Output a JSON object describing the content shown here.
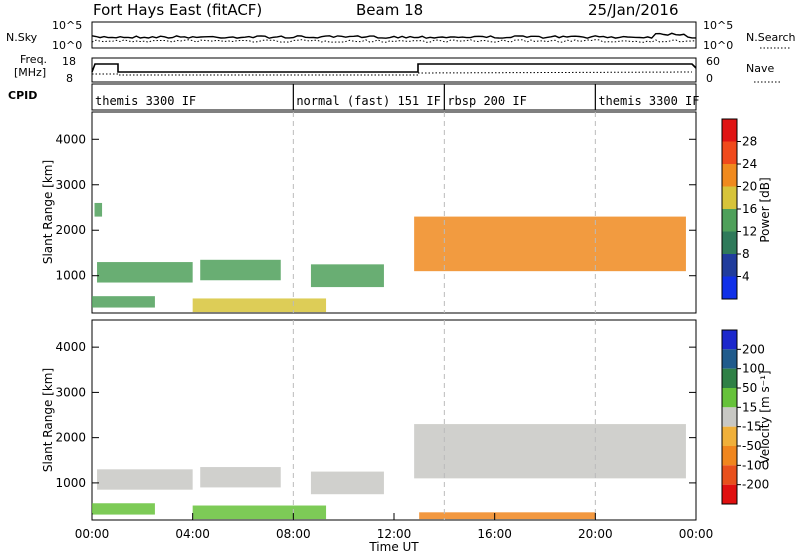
{
  "header": {
    "left_title": "Fort Hays East (fitACF)",
    "center_title": "Beam 18",
    "right_title": "25/Jan/2016"
  },
  "noise_panel": {
    "left_label": "N.Sky",
    "left_ticks": [
      "10^5",
      "10^0"
    ],
    "right_label": "N.Search",
    "right_ticks": [
      "10^5",
      "10^0"
    ]
  },
  "freq_panel": {
    "left_label_line1": "Freq.",
    "left_label_line2": "[MHz]",
    "left_ticks": [
      "18",
      "8"
    ],
    "right_label": "Nave",
    "right_ticks": [
      "60",
      "0"
    ]
  },
  "cpid_panel": {
    "label": "CPID",
    "segments": [
      {
        "start_hour": 0,
        "text": "themis 3300 IF"
      },
      {
        "start_hour": 8,
        "text": "normal (fast) 151 IF"
      },
      {
        "start_hour": 14,
        "text": "rbsp 200 IF"
      },
      {
        "start_hour": 20,
        "text": "themis 3300 IF"
      }
    ]
  },
  "chart_data": [
    {
      "type": "heatmap",
      "xlabel": "",
      "ylabel": "Slant Range [km]",
      "xlim": [
        0,
        24
      ],
      "ylim": [
        180,
        4600
      ],
      "yticks": [
        1000,
        2000,
        3000,
        4000
      ],
      "colorbar": {
        "label": "Power [dB]",
        "range": [
          0,
          32
        ],
        "ticks": [
          "4",
          "8",
          "12",
          "16",
          "20",
          "24",
          "28"
        ],
        "colors": [
          "#1030e8",
          "#203c9c",
          "#2f7a5a",
          "#4fa05a",
          "#d7c43a",
          "#f08a1e",
          "#f04a1c",
          "#e01414"
        ]
      },
      "regions": [
        {
          "t": [
            0.2,
            4.0
          ],
          "range": [
            850,
            1300
          ],
          "value": 12
        },
        {
          "t": [
            4.3,
            7.5
          ],
          "range": [
            900,
            1350
          ],
          "value": 12
        },
        {
          "t": [
            8.7,
            11.6
          ],
          "range": [
            750,
            1250
          ],
          "value": 14
        },
        {
          "t": [
            0.0,
            2.5
          ],
          "range": [
            300,
            550
          ],
          "value": 14
        },
        {
          "t": [
            4.0,
            9.3
          ],
          "range": [
            200,
            500
          ],
          "value": 18
        },
        {
          "t": [
            12.8,
            23.6
          ],
          "range": [
            1100,
            2300
          ],
          "value": 22
        },
        {
          "t": [
            0.1,
            0.4
          ],
          "range": [
            2300,
            2600
          ],
          "value": 14
        }
      ]
    },
    {
      "type": "heatmap",
      "xlabel": "Time UT",
      "ylabel": "Slant Range [km]",
      "xlim": [
        0,
        24
      ],
      "ylim": [
        180,
        4600
      ],
      "yticks": [
        1000,
        2000,
        3000,
        4000
      ],
      "xticks": [
        "00:00",
        "04:00",
        "08:00",
        "12:00",
        "16:00",
        "20:00",
        "00:00"
      ],
      "colorbar": {
        "label": "Velocity [m s⁻¹]",
        "ticks": [
          "200",
          "100",
          "50",
          "15",
          "-15",
          "-50",
          "-100",
          "-200"
        ],
        "colors": [
          "#1c28cc",
          "#205b8c",
          "#2f8046",
          "#66c23a",
          "#c8c8c4",
          "#f0b03a",
          "#f0861e",
          "#e8501c",
          "#e01010"
        ]
      },
      "regions": [
        {
          "t": [
            0.2,
            4.0
          ],
          "range": [
            850,
            1300
          ],
          "value": 0
        },
        {
          "t": [
            4.3,
            7.5
          ],
          "range": [
            900,
            1350
          ],
          "value": 0
        },
        {
          "t": [
            8.7,
            11.6
          ],
          "range": [
            750,
            1250
          ],
          "value": 0
        },
        {
          "t": [
            0.0,
            2.5
          ],
          "range": [
            300,
            550
          ],
          "value": 40
        },
        {
          "t": [
            4.0,
            9.3
          ],
          "range": [
            200,
            500
          ],
          "value": 40
        },
        {
          "t": [
            12.8,
            23.6
          ],
          "range": [
            1100,
            2300
          ],
          "value": 0
        },
        {
          "t": [
            13.0,
            20.0
          ],
          "range": [
            200,
            350
          ],
          "value": -60
        }
      ]
    }
  ]
}
